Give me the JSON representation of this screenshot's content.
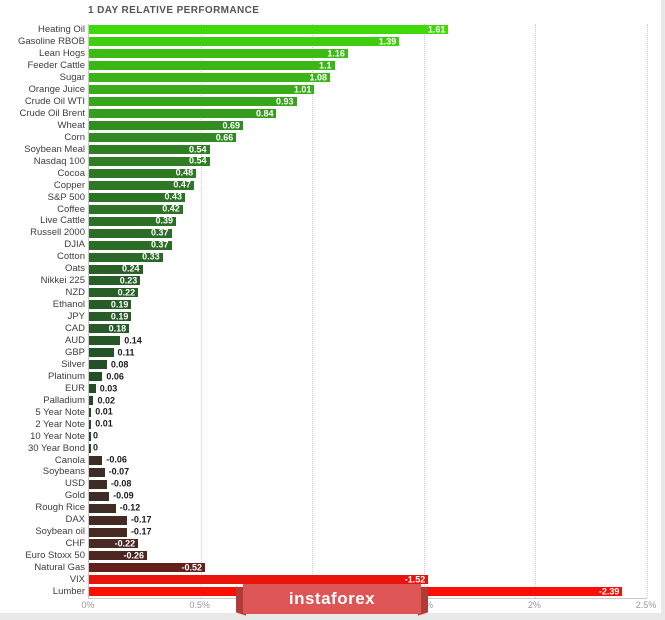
{
  "title": "1 DAY RELATIVE PERFORMANCE",
  "watermark": {
    "text": "instaforex",
    "bg": "#dd5555",
    "fold": "#b13b3b"
  },
  "chart_data": {
    "type": "bar",
    "orientation": "horizontal",
    "title": "1 DAY RELATIVE PERFORMANCE",
    "xlabel": "",
    "ylabel": "",
    "xlim": [
      0,
      2.5
    ],
    "x_tick_values": [
      0,
      0.5,
      1,
      1.5,
      2,
      2.5
    ],
    "x_tick_labels": [
      "0%",
      "0.5%",
      "1%",
      "1.5%",
      "2%",
      "2.5%"
    ],
    "grid": "vertical-dotted",
    "note": "bar length equals absolute value of 1-day % change; green shades = positive, dark/red shades = negative",
    "categories": [
      "Heating Oil",
      "Gasoline RBOB",
      "Lean Hogs",
      "Feeder Cattle",
      "Sugar",
      "Orange Juice",
      "Crude Oil WTI",
      "Crude Oil Brent",
      "Wheat",
      "Corn",
      "Soybean Meal",
      "Nasdaq 100",
      "Cocoa",
      "Copper",
      "S&P 500",
      "Coffee",
      "Live Cattle",
      "Russell 2000",
      "DJIA",
      "Cotton",
      "Oats",
      "Nikkei 225",
      "NZD",
      "Ethanol",
      "JPY",
      "CAD",
      "AUD",
      "GBP",
      "Silver",
      "Platinum",
      "EUR",
      "Palladium",
      "5 Year Note",
      "2 Year Note",
      "10 Year Note",
      "30 Year Bond",
      "Canola",
      "Soybeans",
      "USD",
      "Gold",
      "Rough Rice",
      "DAX",
      "Soybean oil",
      "CHF",
      "Euro Stoxx 50",
      "Natural Gas",
      "VIX",
      "Lumber"
    ],
    "values": [
      1.61,
      1.39,
      1.16,
      1.1,
      1.08,
      1.01,
      0.93,
      0.84,
      0.69,
      0.66,
      0.54,
      0.54,
      0.48,
      0.47,
      0.43,
      0.42,
      0.39,
      0.37,
      0.37,
      0.33,
      0.24,
      0.23,
      0.22,
      0.19,
      0.19,
      0.18,
      0.14,
      0.11,
      0.08,
      0.06,
      0.03,
      0.02,
      0.01,
      0.01,
      0,
      0,
      -0.06,
      -0.07,
      -0.08,
      -0.09,
      -0.12,
      -0.17,
      -0.17,
      -0.22,
      -0.26,
      -0.52,
      -1.52,
      -2.39
    ],
    "value_labels": [
      "1.61",
      "1.39",
      "1.16",
      "1.1",
      "1.08",
      "1.01",
      "0.93",
      "0.84",
      "0.69",
      "0.66",
      "0.54",
      "0.54",
      "0.48",
      "0.47",
      "0.43",
      "0.42",
      "0.39",
      "0.37",
      "0.37",
      "0.33",
      "0.24",
      "0.23",
      "0.22",
      "0.19",
      "0.19",
      "0.18",
      "0.14",
      "0.11",
      "0.08",
      "0.06",
      "0.03",
      "0.02",
      "0.01",
      "0.01",
      "0",
      "0",
      "-0.06",
      "-0.07",
      "-0.08",
      "-0.09",
      "-0.12",
      "-0.17",
      "-0.17",
      "-0.22",
      "-0.26",
      "-0.52",
      "-1.52",
      "-2.39"
    ],
    "bar_colors": [
      "#3fd808",
      "#3fce0d",
      "#3bbb14",
      "#3ab616",
      "#3ab417",
      "#38ad19",
      "#37a51c",
      "#359c1e",
      "#328d21",
      "#328b22",
      "#2f7e24",
      "#2f7e24",
      "#2e7825",
      "#2e7725",
      "#2d7326",
      "#2d7226",
      "#2c6f26",
      "#2b6d27",
      "#2b6d27",
      "#2a6927",
      "#286028",
      "#285f28",
      "#285e28",
      "#275b28",
      "#275b28",
      "#275a28",
      "#265628",
      "#255328",
      "#245028",
      "#244e28",
      "#234b28",
      "#234a28",
      "#234928",
      "#234928",
      "#234828",
      "#234828",
      "#3b2d26",
      "#3c2d26",
      "#3d2c26",
      "#3e2c26",
      "#412b25",
      "#452a24",
      "#452a24",
      "#4a2823",
      "#4e2722",
      "#63211d",
      "#e8130a",
      "#fb0e04"
    ]
  }
}
